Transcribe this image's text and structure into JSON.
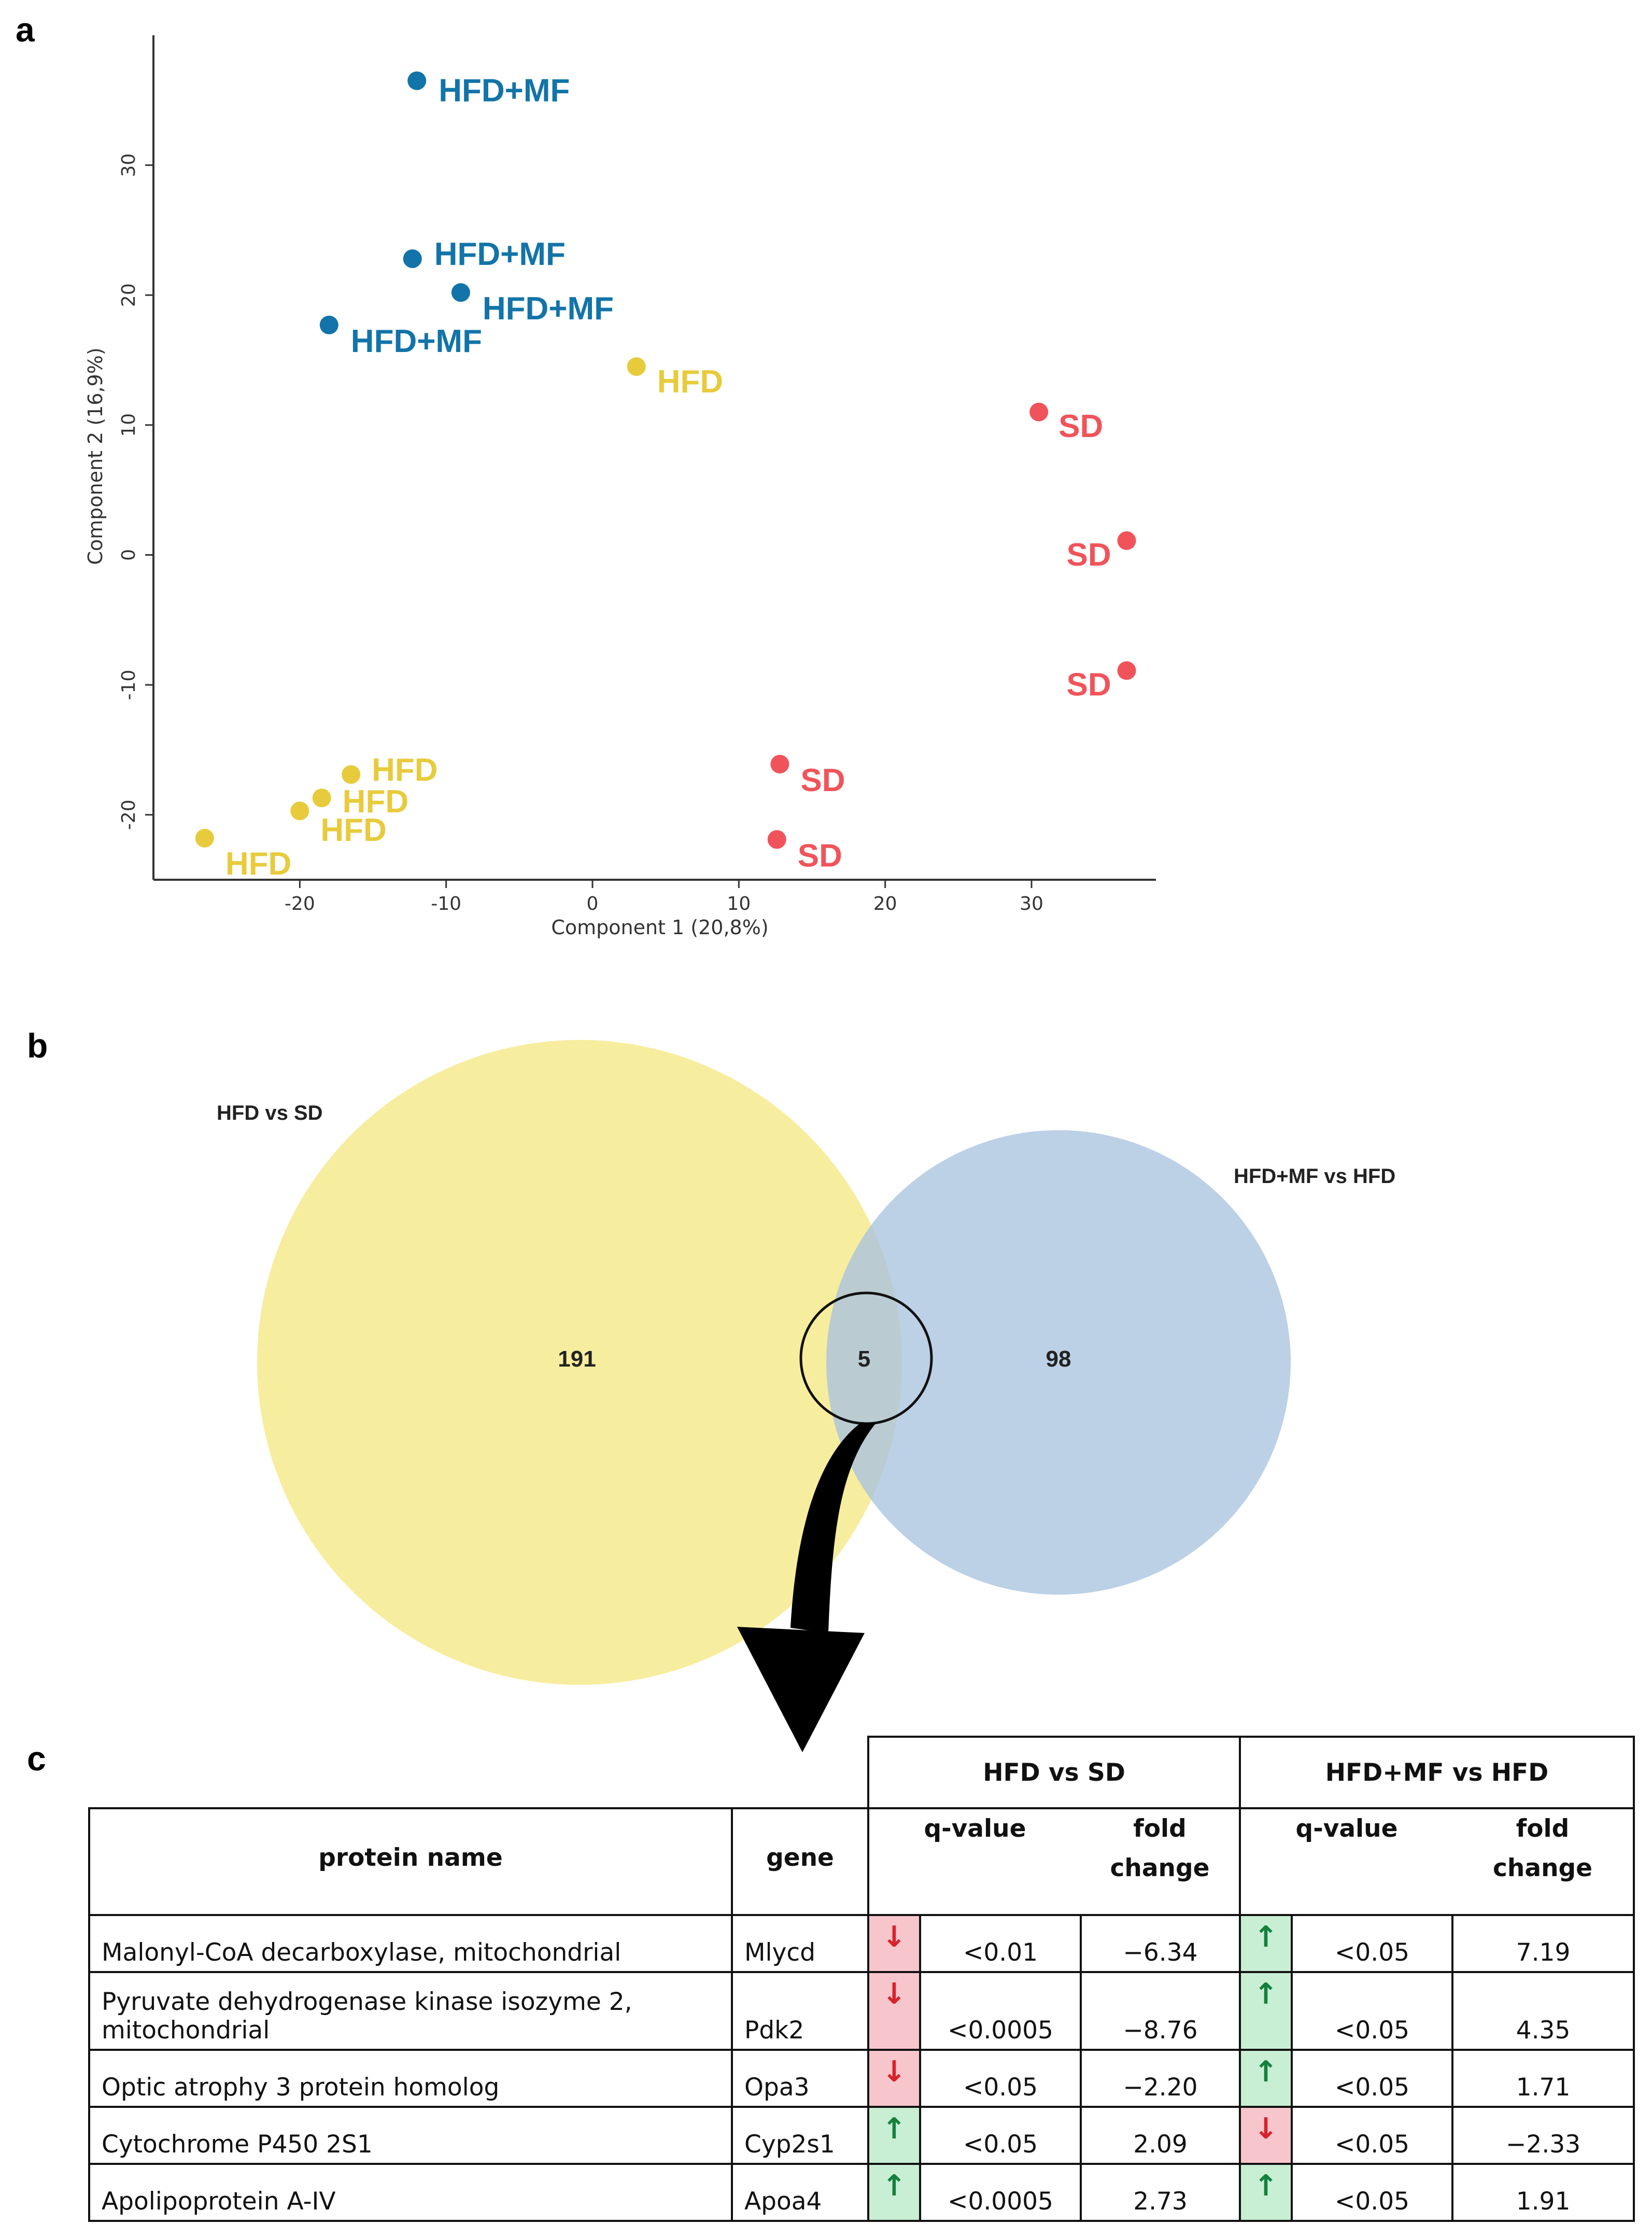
{
  "panels": {
    "a": "a",
    "b": "b",
    "c": "c"
  },
  "colors": {
    "hfd_mf": "#1274a8",
    "hfd": "#e8cb3c",
    "sd": "#f0545a",
    "venn_yellow": "#f6eb96",
    "venn_blue": "#a9c3df"
  },
  "chart_data": {
    "type": "scatter",
    "xlabel": "Component 1 (20,8%)",
    "ylabel": "Component 2 (16,9%)",
    "xlim": [
      -30,
      38.5
    ],
    "ylim": [
      -25,
      40
    ],
    "xticks": [
      -20,
      -10,
      0,
      10,
      20,
      30
    ],
    "yticks": [
      -20,
      -10,
      0,
      10,
      20,
      30
    ],
    "series": [
      {
        "name": "HFD+MF",
        "color": "#1274a8",
        "points": [
          {
            "x": -12,
            "y": 36.5,
            "label": "HFD+MF"
          },
          {
            "x": -12.3,
            "y": 22.8,
            "label": "HFD+MF"
          },
          {
            "x": -9,
            "y": 20.2,
            "label": "HFD+MF"
          },
          {
            "x": -18,
            "y": 17.7,
            "label": "HFD+MF"
          }
        ]
      },
      {
        "name": "HFD",
        "color": "#e8cb3c",
        "points": [
          {
            "x": 3,
            "y": 14.5,
            "label": "HFD"
          },
          {
            "x": -16.5,
            "y": -16.9,
            "label": "HFD"
          },
          {
            "x": -18.5,
            "y": -18.7,
            "label": "HFD"
          },
          {
            "x": -20,
            "y": -19.7,
            "label": "HFD"
          },
          {
            "x": -26.5,
            "y": -21.8,
            "label": "HFD"
          }
        ]
      },
      {
        "name": "SD",
        "color": "#f0545a",
        "points": [
          {
            "x": 30.5,
            "y": 11,
            "label": "SD"
          },
          {
            "x": 36.5,
            "y": 1.1,
            "label": "SD"
          },
          {
            "x": 36.5,
            "y": -8.9,
            "label": "SD"
          },
          {
            "x": 12.8,
            "y": -16.1,
            "label": "SD"
          },
          {
            "x": 12.6,
            "y": -21.9,
            "label": "SD"
          }
        ]
      }
    ]
  },
  "venn": {
    "left_title": "HFD vs SD",
    "right_title": "HFD+MF vs HFD",
    "left_only": "191",
    "overlap": "5",
    "right_only": "98"
  },
  "table": {
    "group_1": "HFD vs SD",
    "group_2": "HFD+MF vs HFD",
    "col_protein": "protein name",
    "col_gene": "gene",
    "col_q": "q-value",
    "col_fold_1": "fold",
    "col_fold_2": "change",
    "rows": [
      {
        "protein": "Malonyl-CoA decarboxylase, mitochondrial",
        "gene": "Mlycd",
        "dir1": "down",
        "arrow1": "↓",
        "q1": "<0.01",
        "fc1": "−6.34",
        "dir2": "up",
        "arrow2": "↑",
        "q2": "<0.05",
        "fc2": "7.19"
      },
      {
        "protein": "Pyruvate dehydrogenase kinase isozyme 2, mitochondrial",
        "gene": "Pdk2",
        "dir1": "down",
        "arrow1": "↓",
        "q1": "<0.0005",
        "fc1": "−8.76",
        "dir2": "up",
        "arrow2": "↑",
        "q2": "<0.05",
        "fc2": "4.35"
      },
      {
        "protein": "Optic atrophy 3 protein homolog",
        "gene": "Opa3",
        "dir1": "down",
        "arrow1": "↓",
        "q1": "<0.05",
        "fc1": "−2.20",
        "dir2": "up",
        "arrow2": "↑",
        "q2": "<0.05",
        "fc2": "1.71"
      },
      {
        "protein": "Cytochrome P450 2S1",
        "gene": "Cyp2s1",
        "dir1": "up",
        "arrow1": "↑",
        "q1": "<0.05",
        "fc1": "2.09",
        "dir2": "down",
        "arrow2": "↓",
        "q2": "<0.05",
        "fc2": "−2.33"
      },
      {
        "protein": "Apolipoprotein A-IV",
        "gene": "Apoa4",
        "dir1": "up",
        "arrow1": "↑",
        "q1": "<0.0005",
        "fc1": "2.73",
        "dir2": "up",
        "arrow2": "↑",
        "q2": "<0.05",
        "fc2": "1.91"
      }
    ]
  }
}
